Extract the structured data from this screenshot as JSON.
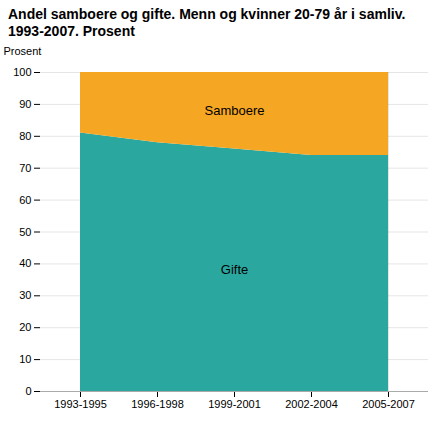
{
  "chart_data": {
    "type": "area",
    "title": "Andel samboere og gifte. Menn og kvinner 20-79 år i samliv. 1993-2007. Prosent",
    "y_label": "Prosent",
    "categories": [
      "1993-1995",
      "1996-1998",
      "1999-2001",
      "2002-2004",
      "2005-2007"
    ],
    "series": [
      {
        "name": "Gifte",
        "color": "#2aA8A0",
        "values": [
          81,
          78,
          76,
          74,
          74
        ]
      },
      {
        "name": "Samboere",
        "color": "#F5A623",
        "values": [
          19,
          22,
          24,
          26,
          26
        ]
      }
    ],
    "stacked": true,
    "ylim": [
      0,
      100
    ],
    "yticks": [
      0,
      10,
      20,
      30,
      40,
      50,
      60,
      70,
      80,
      90,
      100
    ],
    "grid": true
  }
}
